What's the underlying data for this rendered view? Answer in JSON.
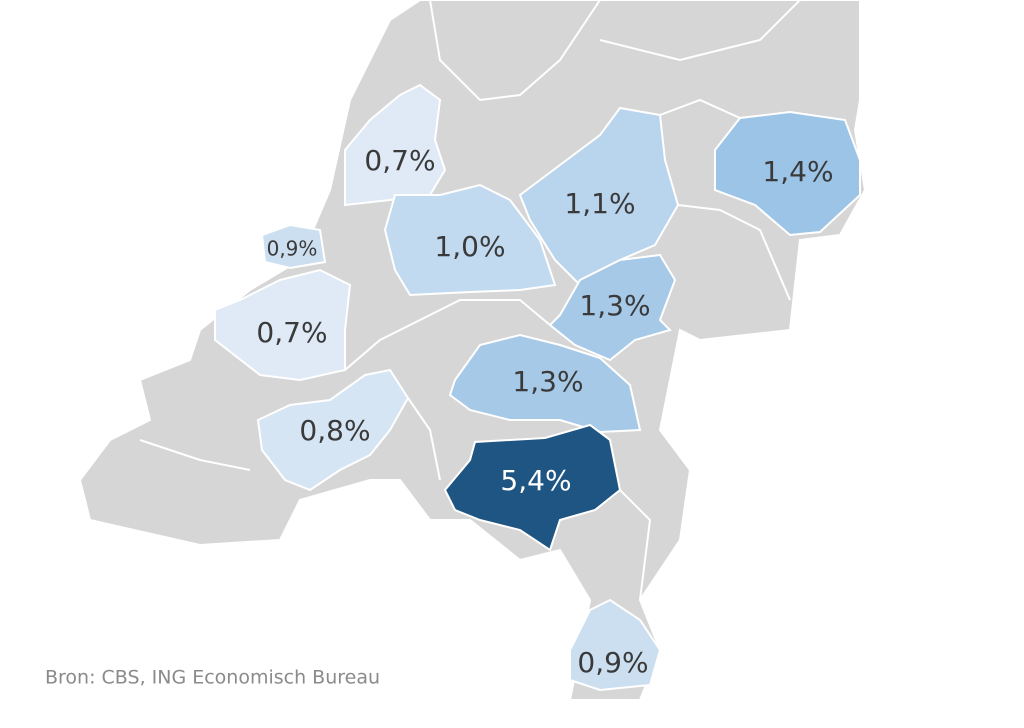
{
  "regions": [
    {
      "label": "0,7%",
      "value": 0.7
    },
    {
      "label": "0,9%",
      "value": 0.9
    },
    {
      "label": "1,0%",
      "value": 1.0
    },
    {
      "label": "1,1%",
      "value": 1.1
    },
    {
      "label": "1,4%",
      "value": 1.4
    },
    {
      "label": "1,3%",
      "value": 1.3
    },
    {
      "label": "0,7%",
      "value": 0.7
    },
    {
      "label": "1,3%",
      "value": 1.3
    },
    {
      "label": "0,8%",
      "value": 0.8
    },
    {
      "label": "5,4%",
      "value": 5.4
    },
    {
      "label": "0,9%",
      "value": 0.9
    }
  ],
  "source": "Bron: CBS, ING Economisch Bureau"
}
